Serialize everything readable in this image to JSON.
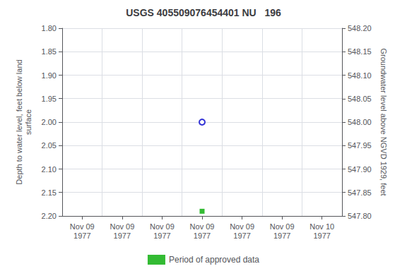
{
  "chart_data": {
    "type": "scatter",
    "title": "USGS 405509076454401 NU   196",
    "ylabel": "Depth to water level, feet below land\nsurface",
    "y2label": "Groundwater level above NGVD 1929, feet",
    "categories": [
      "Nov 09\n1977",
      "Nov 09\n1977",
      "Nov 09\n1977",
      "Nov 09\n1977",
      "Nov 09\n1977",
      "Nov 09\n1977",
      "Nov 10\n1977"
    ],
    "series": [
      {
        "color": "#0000cc",
        "marker": "circle-open",
        "values": [
          null,
          null,
          null,
          2.0,
          null,
          null,
          null
        ]
      },
      {
        "name": "Period of approved data",
        "color": "#00aa00",
        "marker": "square",
        "values": [
          null,
          null,
          null,
          2.19,
          null,
          null,
          null
        ]
      }
    ],
    "ylim": [
      2.2,
      1.8
    ],
    "yticks": [
      {
        "value": 1.8,
        "label": "1.80"
      },
      1.85,
      {
        "value": 1.9,
        "label": "1.90"
      },
      1.95,
      {
        "value": 2.0,
        "label": "2.00"
      },
      2.05,
      {
        "value": 2.1,
        "label": "2.10"
      },
      2.15,
      {
        "value": 2.2,
        "label": "2.20"
      }
    ],
    "y2lim": [
      547.8,
      548.2
    ],
    "y2ticks": [
      {
        "value": 548.2,
        "label": "548.20"
      },
      548.15,
      {
        "value": 548.1,
        "label": "548.10"
      },
      548.05,
      {
        "value": 548.0,
        "label": "548.00"
      },
      547.95,
      {
        "value": 547.9,
        "label": "547.90"
      },
      547.85,
      {
        "value": 547.8,
        "label": "547.80"
      }
    ],
    "grid": true,
    "legend": "bottom"
  }
}
